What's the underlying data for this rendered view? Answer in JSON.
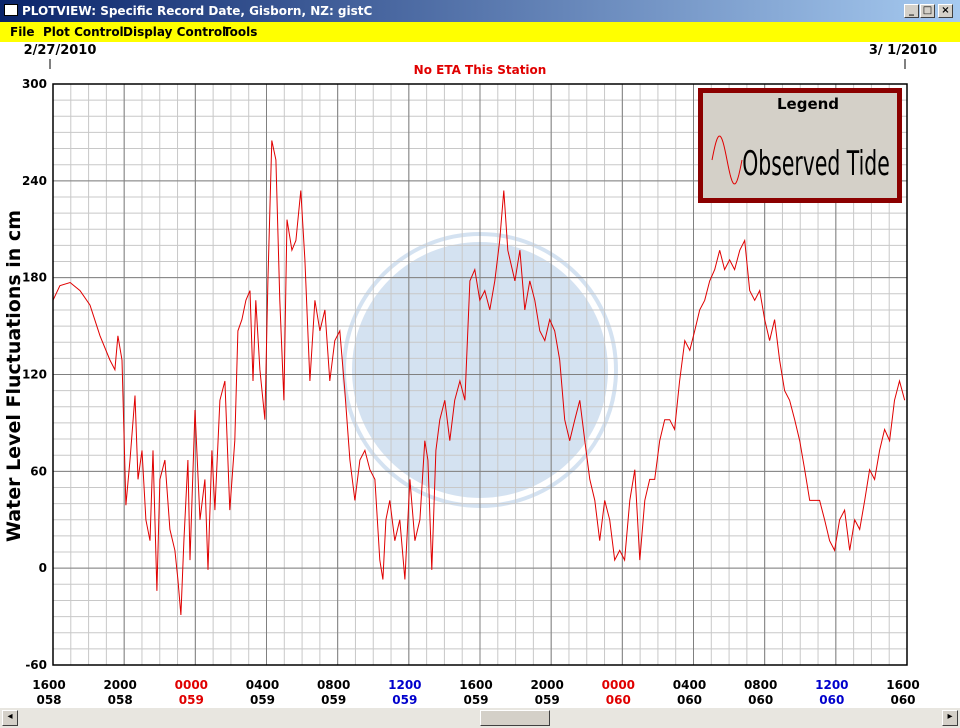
{
  "window": {
    "title": "PLOTVIEW: Specific Record Date, Gisborn, NZ: gistC"
  },
  "menu": [
    "File",
    "Plot Control",
    "Display Control",
    "Tools"
  ],
  "chart_data": {
    "type": "line",
    "subtitle": "No ETA This Station",
    "date_start": "2/27/2010",
    "date_end": "3/ 1/2010",
    "ylabel": "Water Level Fluctuations in cm",
    "ylim": [
      -60,
      300
    ],
    "yticks": [
      -60,
      0,
      60,
      120,
      180,
      240,
      300
    ],
    "yminor": 10,
    "xlim": [
      0,
      48
    ],
    "xminor": 1,
    "xticks": [
      {
        "value": 0,
        "label": "1600"
      },
      {
        "value": 4,
        "label": "2000"
      },
      {
        "value": 8,
        "label": "0000"
      },
      {
        "value": 12,
        "label": "0400"
      },
      {
        "value": 16,
        "label": "0800"
      },
      {
        "value": 20,
        "label": "1200"
      },
      {
        "value": 24,
        "label": "1600"
      },
      {
        "value": 28,
        "label": "2000"
      },
      {
        "value": 32,
        "label": "0000"
      },
      {
        "value": 36,
        "label": "0400"
      },
      {
        "value": 40,
        "label": "0800"
      },
      {
        "value": 44,
        "label": "1200"
      },
      {
        "value": 48,
        "label": "1600"
      }
    ],
    "xtick_days": [
      "058",
      "058",
      "059",
      "059",
      "059",
      "059",
      "059",
      "059",
      "060",
      "060",
      "060",
      "060",
      "060"
    ],
    "xtick_colors": [
      "#000000",
      "#000000",
      "#e00000",
      "#000000",
      "#000000",
      "#0000cc",
      "#000000",
      "#000000",
      "#e00000",
      "#000000",
      "#000000",
      "#0000cc",
      "#000000"
    ],
    "grid": true,
    "legend": {
      "title": "Legend",
      "position": "top-right"
    },
    "x": [
      0,
      0.39,
      0.96,
      1.52,
      2.08,
      2.64,
      3.2,
      3.48,
      3.65,
      3.88,
      4.1,
      4.33,
      4.61,
      4.78,
      5.0,
      5.22,
      5.45,
      5.62,
      5.84,
      6.01,
      6.29,
      6.57,
      6.85,
      7.02,
      7.19,
      7.36,
      7.58,
      7.7,
      7.98,
      8.26,
      8.54,
      8.71,
      8.93,
      9.1,
      9.38,
      9.66,
      9.94,
      10.22,
      10.39,
      10.62,
      10.84,
      11.07,
      11.24,
      11.4,
      11.63,
      11.91,
      12.08,
      12.3,
      12.53,
      12.75,
      12.98,
      13.15,
      13.43,
      13.65,
      13.93,
      14.16,
      14.44,
      14.72,
      15.0,
      15.28,
      15.56,
      15.84,
      16.12,
      16.4,
      16.69,
      16.97,
      17.25,
      17.53,
      17.81,
      18.09,
      18.37,
      18.54,
      18.71,
      18.93,
      19.21,
      19.49,
      19.78,
      20.06,
      20.34,
      20.62,
      20.9,
      21.07,
      21.29,
      21.52,
      21.74,
      22.02,
      22.3,
      22.58,
      22.87,
      23.15,
      23.43,
      23.71,
      23.99,
      24.27,
      24.55,
      24.83,
      25.11,
      25.34,
      25.56,
      25.96,
      26.24,
      26.52,
      26.8,
      27.08,
      27.36,
      27.64,
      27.92,
      28.2,
      28.48,
      28.76,
      29.04,
      29.33,
      29.61,
      29.89,
      30.17,
      30.45,
      30.73,
      31.01,
      31.29,
      31.57,
      31.85,
      32.13,
      32.42,
      32.7,
      32.98,
      33.26,
      33.54,
      33.82,
      34.1,
      34.38,
      34.66,
      34.94,
      35.22,
      35.51,
      35.79,
      36.07,
      36.35,
      36.63,
      36.91,
      37.19,
      37.47,
      37.75,
      38.03,
      38.31,
      38.6,
      38.88,
      39.16,
      39.44,
      39.72,
      40.0,
      40.28,
      40.56,
      40.84,
      41.12,
      41.4,
      41.69,
      41.97,
      42.25,
      42.53,
      42.81,
      43.09,
      43.37,
      43.65,
      43.93,
      44.21,
      44.49,
      44.78,
      45.06,
      45.34,
      45.62,
      45.9,
      46.18,
      46.46,
      46.74,
      47.02,
      47.3,
      47.58,
      47.87
    ],
    "series": [
      {
        "name": "Observed Tide",
        "color": "#e00000",
        "values": [
          166,
          175,
          177,
          172,
          163,
          144,
          129,
          123,
          144,
          129,
          39,
          67,
          107,
          55,
          73,
          30,
          17,
          73,
          -14,
          55,
          67,
          24,
          11,
          -7,
          -29,
          17,
          67,
          5,
          98,
          30,
          55,
          -1,
          73,
          36,
          104,
          116,
          36,
          79,
          147,
          154,
          166,
          172,
          116,
          166,
          123,
          92,
          178,
          265,
          253,
          166,
          104,
          216,
          197,
          203,
          234,
          191,
          116,
          166,
          147,
          160,
          116,
          141,
          147,
          110,
          67,
          42,
          67,
          73,
          61,
          55,
          5,
          -7,
          30,
          42,
          17,
          30,
          -7,
          55,
          17,
          30,
          79,
          67,
          -1,
          73,
          92,
          104,
          79,
          104,
          116,
          104,
          178,
          185,
          166,
          172,
          160,
          178,
          203,
          234,
          197,
          178,
          197,
          160,
          178,
          166,
          147,
          141,
          154,
          147,
          129,
          92,
          79,
          92,
          104,
          79,
          55,
          42,
          17,
          42,
          30,
          5,
          11,
          5,
          42,
          61,
          5,
          42,
          55,
          55,
          79,
          92,
          92,
          86,
          116,
          141,
          135,
          147,
          160,
          166,
          178,
          185,
          197,
          185,
          191,
          185,
          197,
          203,
          172,
          166,
          172,
          154,
          141,
          154,
          129,
          110,
          104,
          92,
          79,
          61,
          42,
          42,
          42,
          30,
          17,
          11,
          30,
          36,
          11,
          30,
          24,
          42,
          61,
          55,
          73,
          86,
          79,
          104,
          116,
          104
        ]
      }
    ]
  }
}
